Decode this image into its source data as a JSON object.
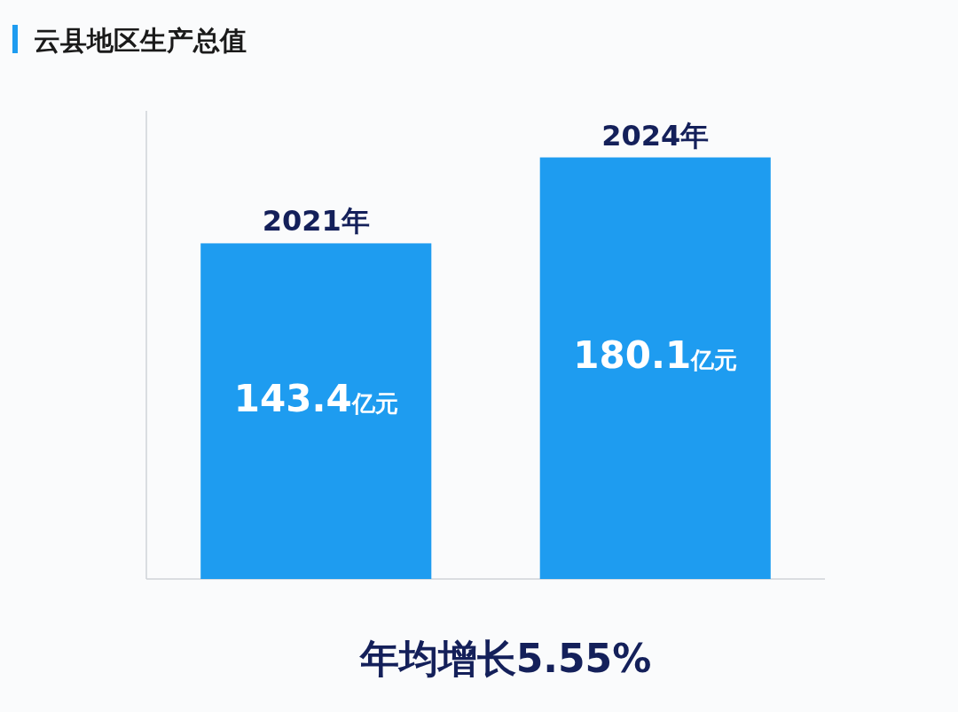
{
  "chart_data": {
    "type": "bar",
    "title": "云县地区生产总值",
    "categories": [
      "2021年",
      "2024年"
    ],
    "values": [
      143.4,
      180.1
    ],
    "value_labels": [
      "143.4亿元",
      "180.1亿元"
    ],
    "color": "#1e9cf0",
    "ylim": [
      0,
      200
    ],
    "annotations": [
      "年均增长5.55%"
    ]
  }
}
